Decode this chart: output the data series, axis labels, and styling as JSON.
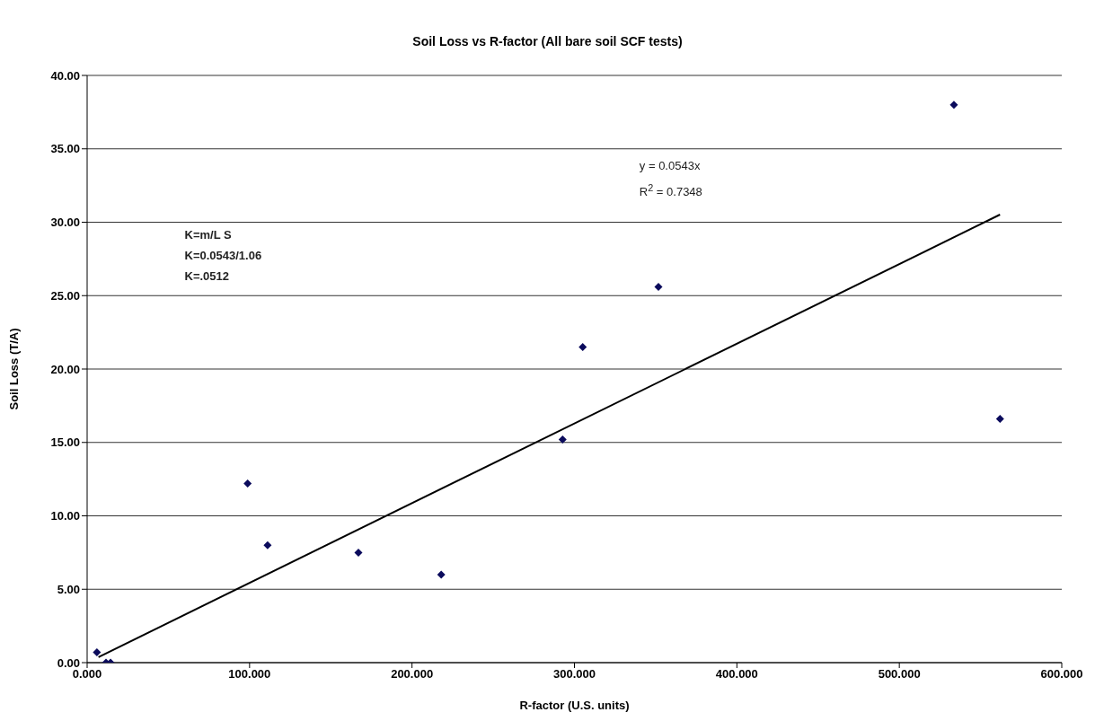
{
  "chart_data": {
    "type": "scatter",
    "title": "Soil Loss vs R-factor (All bare soil SCF tests)",
    "xlabel": "R-factor (U.S. units)",
    "ylabel": "Soil Loss (T/A)",
    "xlim": [
      0,
      600
    ],
    "xticks": [
      {
        "value": 0,
        "label": "0.000"
      },
      {
        "value": 100,
        "label": "100.000"
      },
      {
        "value": 200,
        "label": "200.000"
      },
      {
        "value": 300,
        "label": "300.000"
      },
      {
        "value": 400,
        "label": "400.000"
      },
      {
        "value": 500,
        "label": "500.000"
      },
      {
        "value": 600,
        "label": "600.000"
      }
    ],
    "ylim": [
      0,
      40
    ],
    "yticks": [
      {
        "value": 0,
        "label": "0.00"
      },
      {
        "value": 5,
        "label": "5.00"
      },
      {
        "value": 10,
        "label": "10.00"
      },
      {
        "value": 15,
        "label": "15.00"
      },
      {
        "value": 20,
        "label": "20.00"
      },
      {
        "value": 25,
        "label": "25.00"
      },
      {
        "value": 30,
        "label": "30.00"
      },
      {
        "value": 35,
        "label": "35.00"
      },
      {
        "value": 40,
        "label": "40.00"
      }
    ],
    "grid": "y",
    "series": [
      {
        "marker": "diamond",
        "color": "#0b0b5c",
        "x": [
          6,
          11.6,
          14.4,
          98.8,
          111.1,
          167,
          218,
          292.7,
          305.1,
          351.7,
          533.6,
          562
        ],
        "values": [
          0.7,
          0,
          0,
          12.2,
          8,
          7.5,
          6,
          15.2,
          21.5,
          25.6,
          38,
          16.6
        ]
      },
      {
        "type": "line",
        "marker": "none",
        "color": "#000000",
        "x": [
          7,
          562
        ],
        "values": [
          0.38,
          30.52
        ]
      }
    ],
    "annotations": [
      "y = 0.0543x",
      "R$^{2}$ = 0.7348",
      "K=m/L S",
      "K=0.0543/1.06",
      "K=.0512"
    ]
  }
}
